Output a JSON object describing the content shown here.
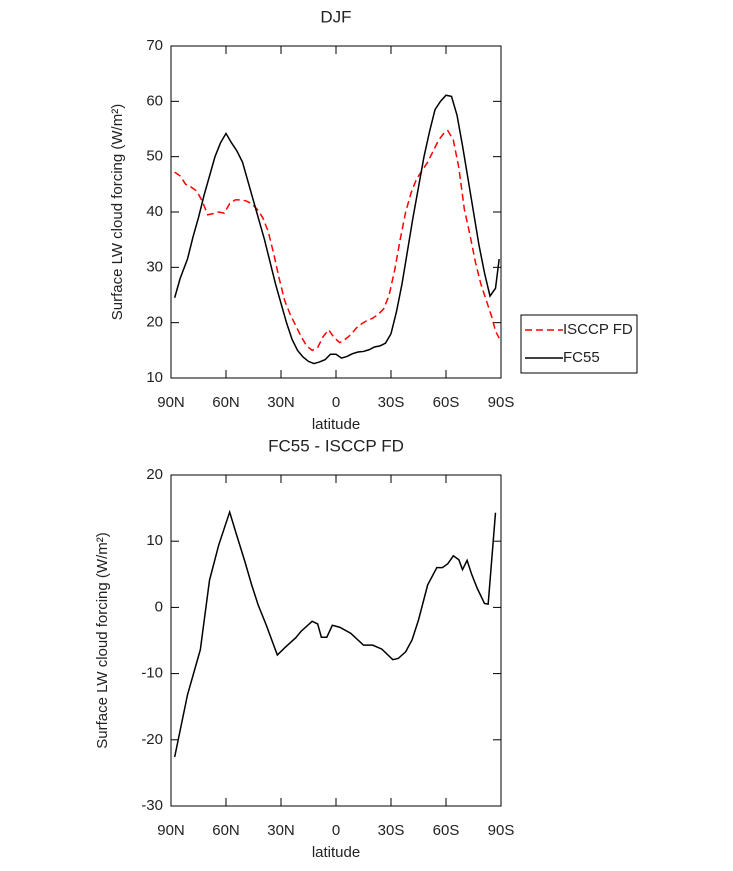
{
  "chart_data": [
    {
      "type": "line",
      "title": "DJF",
      "xlabel": "latitude",
      "ylabel": "Surface LW cloud forcing (W/m²)",
      "xlim": [
        90,
        -90
      ],
      "xticks": [
        {
          "value": 90,
          "label": "90N"
        },
        {
          "value": 60,
          "label": "60N"
        },
        {
          "value": 30,
          "label": "30N"
        },
        0,
        {
          "value": -30,
          "label": "30S"
        },
        {
          "value": -60,
          "label": "60S"
        },
        {
          "value": -90,
          "label": "90S"
        }
      ],
      "ylim": [
        10,
        70
      ],
      "yticks": [
        10,
        20,
        30,
        40,
        50,
        60,
        70
      ],
      "legend": "outside right",
      "series": [
        {
          "name": "ISCCP FD",
          "color": "#ff0000",
          "linestyle": "dashed",
          "x": [
            88,
            85,
            82,
            79,
            76,
            73,
            70,
            67,
            64,
            61,
            58,
            55,
            52,
            49,
            46,
            43,
            40,
            37,
            34,
            31,
            28,
            25,
            22,
            19,
            16,
            13,
            10,
            7,
            4,
            1,
            -2,
            -5,
            -8,
            -11,
            -14,
            -17,
            -20,
            -23,
            -26,
            -29,
            -32,
            -35,
            -38,
            -41,
            -44,
            -47,
            -50,
            -53,
            -56,
            -59,
            -61,
            -64,
            -67,
            -70,
            -73,
            -76,
            -79,
            -82,
            -85,
            -87,
            -89
          ],
          "values": [
            47.2,
            46.5,
            45,
            44.5,
            43.8,
            42,
            39.5,
            39.7,
            40,
            39.8,
            41.5,
            42.2,
            42.2,
            42,
            41.5,
            40.5,
            39,
            36.5,
            32.5,
            28,
            24,
            21.5,
            19.5,
            17.5,
            15.8,
            15,
            15.5,
            17.5,
            18.7,
            17.3,
            16.4,
            17,
            17.8,
            19,
            19.8,
            20.4,
            20.8,
            21.5,
            22.5,
            25,
            29.5,
            35,
            40,
            43.5,
            46,
            47.5,
            49,
            51,
            53,
            54.3,
            54.7,
            53,
            48,
            40.5,
            36,
            31,
            27,
            24,
            21,
            18.5,
            17.2
          ]
        },
        {
          "name": "FC55",
          "color": "#000000",
          "linestyle": "solid",
          "x": [
            88,
            85,
            81,
            78,
            75,
            72,
            69,
            66,
            63,
            60,
            57,
            54,
            51,
            48,
            45,
            42,
            39,
            36,
            33,
            30,
            27,
            24,
            21,
            18,
            15,
            12,
            9,
            6,
            3,
            0,
            -3,
            -6,
            -9,
            -12,
            -15,
            -18,
            -21,
            -24,
            -27,
            -30,
            -33,
            -36,
            -39,
            -42,
            -45,
            -48,
            -51,
            -54,
            -57,
            -60,
            -63,
            -66,
            -69,
            -72,
            -75,
            -78,
            -81,
            -84,
            -87,
            -89
          ],
          "values": [
            24.5,
            28,
            31.5,
            35.5,
            39,
            43,
            46.5,
            50,
            52.5,
            54.2,
            52.5,
            51,
            49,
            45.5,
            42,
            38.5,
            35,
            31,
            27,
            23.5,
            20,
            17,
            15,
            13.8,
            13,
            12.6,
            12.9,
            13.3,
            14.3,
            14.3,
            13.6,
            13.9,
            14.4,
            14.7,
            14.8,
            15.1,
            15.6,
            15.8,
            16.3,
            18,
            22,
            27,
            33,
            39,
            44.5,
            50,
            54.5,
            58.5,
            60,
            61.1,
            60.9,
            57.5,
            52,
            46,
            40,
            34,
            29,
            24.8,
            26.2,
            31.5
          ]
        }
      ]
    },
    {
      "type": "line",
      "title": "FC55 - ISCCP FD",
      "xlabel": "latitude",
      "ylabel": "Surface LW cloud forcing (W/m²)",
      "xlim": [
        90,
        -90
      ],
      "xticks": [
        {
          "value": 90,
          "label": "90N"
        },
        {
          "value": 60,
          "label": "60N"
        },
        {
          "value": 30,
          "label": "30N"
        },
        0,
        {
          "value": -30,
          "label": "30S"
        },
        {
          "value": -60,
          "label": "60S"
        },
        {
          "value": -90,
          "label": "90S"
        }
      ],
      "ylim": [
        -30,
        20
      ],
      "yticks": [
        -30,
        -20,
        -10,
        0,
        10,
        20
      ],
      "series": [
        {
          "color": "#000000",
          "linestyle": "solid",
          "x": [
            88,
            81,
            74,
            69,
            64,
            58,
            54.5,
            50,
            46,
            42.5,
            38,
            32,
            28,
            22,
            19,
            13,
            10,
            8,
            5,
            2,
            -2,
            -8,
            -15,
            -20,
            -25,
            -31,
            -34,
            -38,
            -41.5,
            -45,
            -50,
            -55,
            -58,
            -61,
            -64,
            -67,
            -69,
            -71.5,
            -74,
            -77,
            -81,
            -83,
            -87
          ],
          "values": [
            -22.6,
            -13.2,
            -6.4,
            4.1,
            9.4,
            14.4,
            11.2,
            7.2,
            3.4,
            0.4,
            -2.7,
            -7.2,
            -6.1,
            -4.6,
            -3.6,
            -2.1,
            -2.5,
            -4.5,
            -4.5,
            -2.7,
            -3,
            -3.9,
            -5.7,
            -5.7,
            -6.3,
            -7.9,
            -7.7,
            -6.7,
            -4.9,
            -1.9,
            3.4,
            6,
            6,
            6.6,
            7.8,
            7.2,
            5.7,
            7.1,
            5,
            2.9,
            0.6,
            0.5,
            14.3
          ]
        }
      ]
    }
  ]
}
